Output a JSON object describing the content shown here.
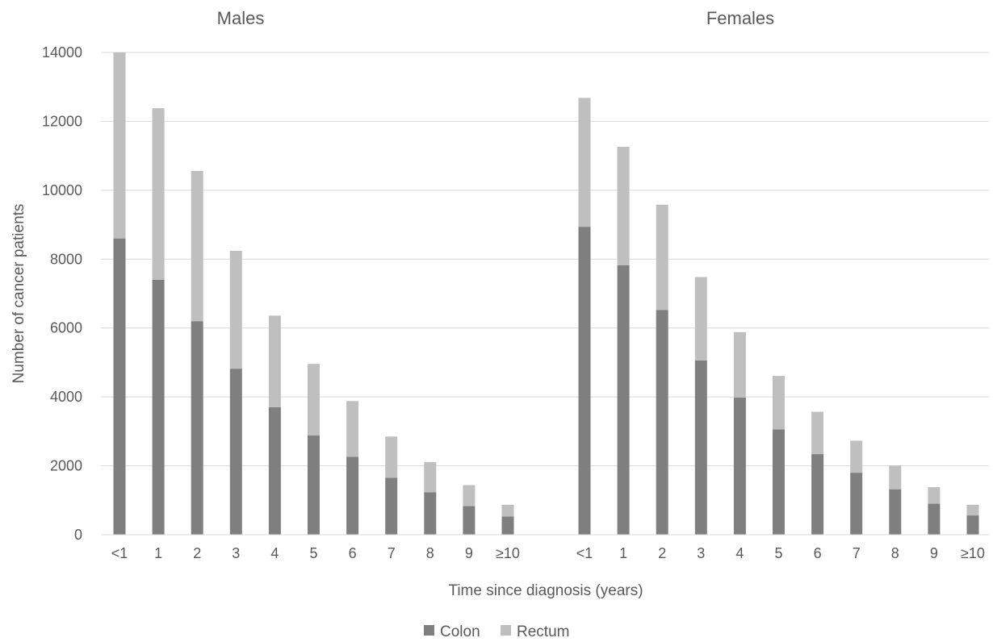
{
  "chart_data": {
    "type": "bar",
    "stacked": true,
    "ylabel": "Number of cancer patients",
    "xlabel": "Time since diagnosis (years)",
    "ylim": [
      0,
      14000
    ],
    "yticks": [
      "0",
      "2000",
      "4000",
      "6000",
      "8000",
      "10000",
      "12000",
      "14000"
    ],
    "grid": true,
    "legend_position": "bottom",
    "colors": {
      "Colon": "#7f7f7f",
      "Rectum": "#bfbfbf",
      "grid": "#d9d9d9",
      "text": "#595959"
    },
    "categories": [
      "<1",
      "1",
      "2",
      "3",
      "4",
      "5",
      "6",
      "7",
      "8",
      "9",
      "≥10"
    ],
    "panels": [
      {
        "title": "Males",
        "series": [
          {
            "name": "Colon",
            "values": [
              8600,
              7400,
              6200,
              4820,
              3700,
              2880,
              2260,
              1650,
              1230,
              830,
              530
            ]
          },
          {
            "name": "Rectum",
            "values": [
              5400,
              4980,
              4360,
              3420,
              2660,
              2080,
              1620,
              1200,
              880,
              610,
              340
            ]
          }
        ]
      },
      {
        "title": "Females",
        "series": [
          {
            "name": "Colon",
            "values": [
              8940,
              7820,
              6520,
              5060,
              3980,
              3060,
              2340,
              1800,
              1320,
              900,
              560
            ]
          },
          {
            "name": "Rectum",
            "values": [
              3740,
              3440,
              3060,
              2420,
              1900,
              1550,
              1230,
              930,
              690,
              480,
              310
            ]
          }
        ]
      }
    ],
    "legend": [
      "Colon",
      "Rectum"
    ]
  }
}
